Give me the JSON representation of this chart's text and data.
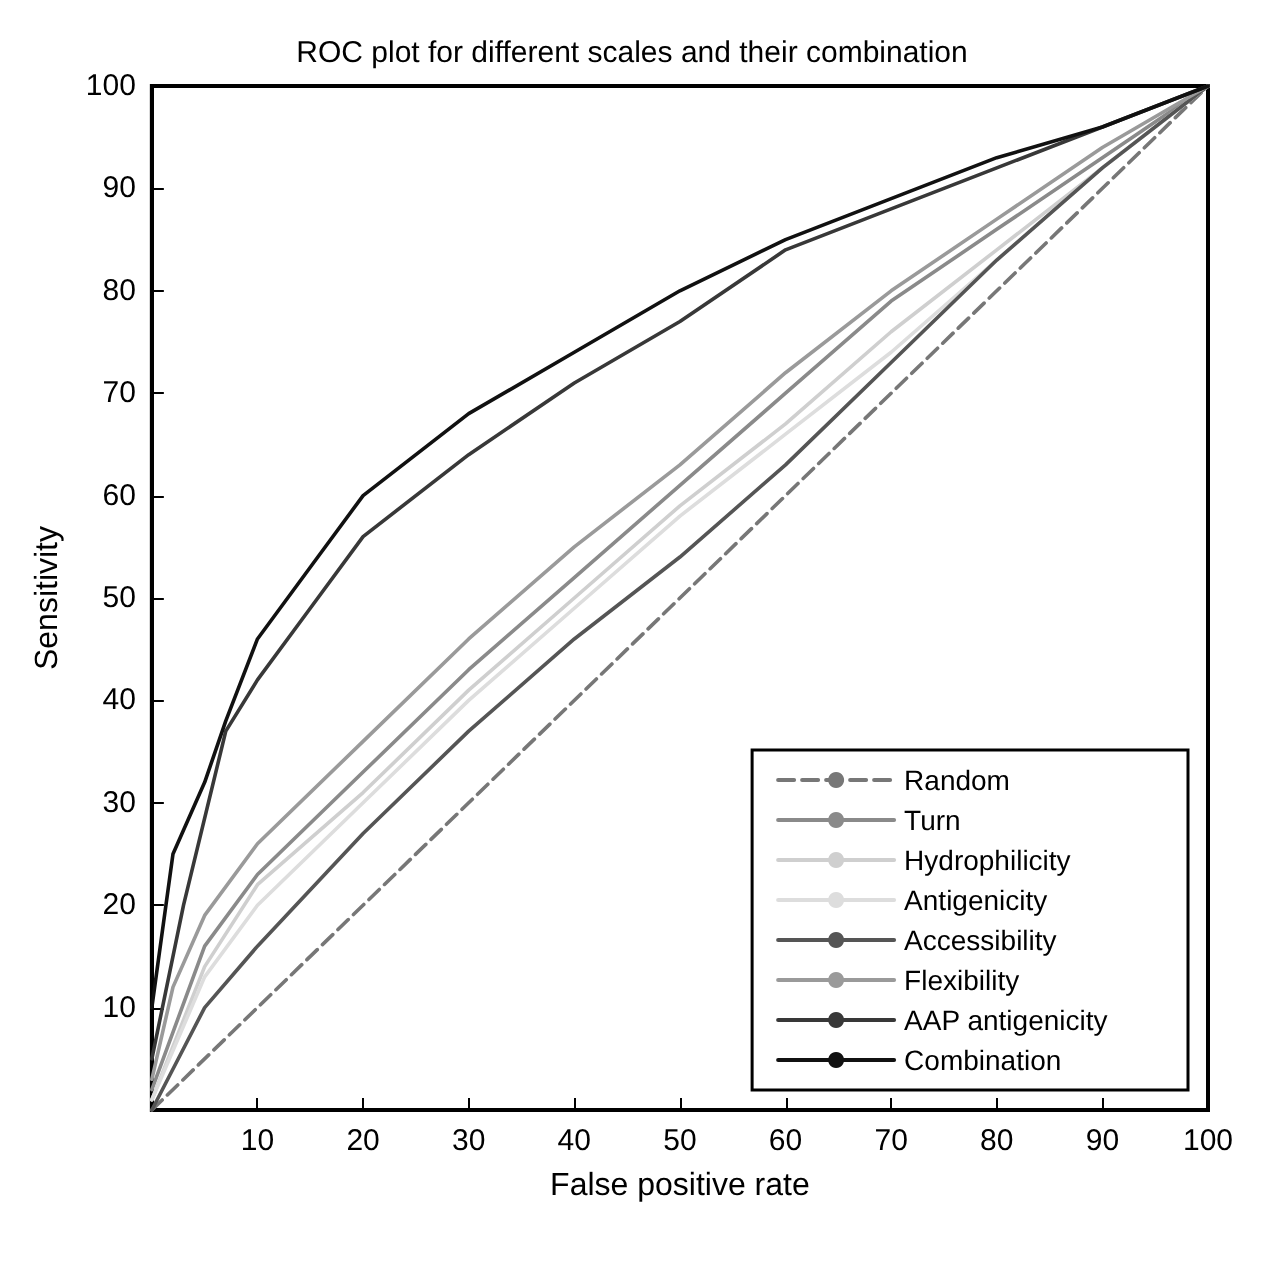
{
  "chart_data": {
    "type": "line",
    "title": "ROC plot for different scales and their combination",
    "xlabel": "False positive rate",
    "ylabel": "Sensitivity",
    "xlim": [
      0,
      100
    ],
    "ylim": [
      0,
      100
    ],
    "xticks": [
      10,
      20,
      30,
      40,
      50,
      60,
      70,
      80,
      90,
      100
    ],
    "yticks": [
      10,
      20,
      30,
      40,
      50,
      60,
      70,
      80,
      90,
      100
    ],
    "grid": false,
    "legend": "bottom right",
    "marker": "none",
    "series": [
      {
        "name": "Random",
        "color": "#777777",
        "line_style": "dashed",
        "x": [
          0,
          100
        ],
        "values": [
          0,
          100
        ]
      },
      {
        "name": "Turn",
        "color": "#8a8a8a",
        "x": [
          0,
          5,
          10,
          20,
          30,
          40,
          50,
          60,
          70,
          80,
          90,
          100
        ],
        "values": [
          2,
          16,
          23,
          33,
          43,
          52,
          61,
          70,
          79,
          86,
          93,
          100
        ]
      },
      {
        "name": "Hydrophilicity",
        "color": "#cfcfcf",
        "x": [
          0,
          5,
          10,
          20,
          30,
          40,
          50,
          60,
          70,
          80,
          90,
          100
        ],
        "values": [
          1,
          14,
          22,
          31,
          41,
          50,
          59,
          67,
          76,
          84,
          92,
          100
        ]
      },
      {
        "name": "Antigenicity",
        "color": "#dddddd",
        "x": [
          0,
          5,
          10,
          20,
          30,
          40,
          50,
          60,
          70,
          80,
          90,
          100
        ],
        "values": [
          1,
          13,
          20,
          30,
          40,
          49,
          58,
          66,
          74,
          83,
          92,
          100
        ]
      },
      {
        "name": "Accessibility",
        "color": "#555555",
        "x": [
          0,
          5,
          10,
          20,
          30,
          40,
          50,
          60,
          70,
          80,
          90,
          100
        ],
        "values": [
          0,
          10,
          16,
          27,
          37,
          46,
          54,
          63,
          73,
          83,
          92,
          100
        ]
      },
      {
        "name": "Flexibility",
        "color": "#9a9a9a",
        "x": [
          0,
          2,
          5,
          10,
          20,
          30,
          40,
          50,
          60,
          70,
          80,
          90,
          100
        ],
        "values": [
          3,
          12,
          19,
          26,
          36,
          46,
          55,
          63,
          72,
          80,
          87,
          94,
          100
        ]
      },
      {
        "name": "AAP antigenicity",
        "color": "#383838",
        "x": [
          0,
          3,
          7,
          10,
          15,
          20,
          30,
          40,
          50,
          60,
          70,
          80,
          90,
          100
        ],
        "values": [
          5,
          20,
          37,
          42,
          49,
          56,
          64,
          71,
          77,
          84,
          88,
          92,
          96,
          100
        ]
      },
      {
        "name": "Combination",
        "color": "#111111",
        "x": [
          0,
          2,
          5,
          7,
          10,
          15,
          20,
          30,
          40,
          50,
          60,
          70,
          80,
          90,
          100
        ],
        "values": [
          10,
          25,
          32,
          38,
          46,
          53,
          60,
          68,
          74,
          80,
          85,
          89,
          93,
          96,
          100
        ]
      }
    ]
  }
}
